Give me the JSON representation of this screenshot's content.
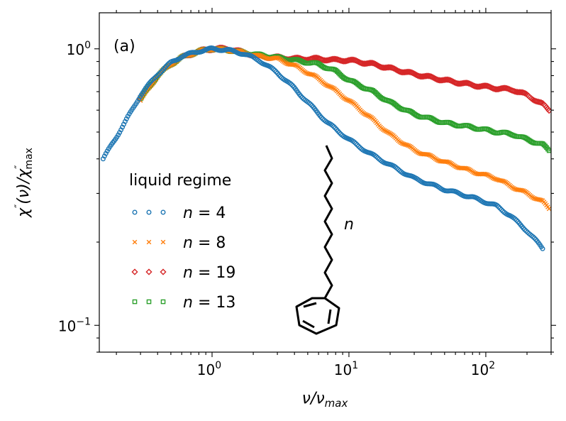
{
  "chart_data": {
    "type": "scatter",
    "panel_label": "(a)",
    "xlabel": "ν/ν",
    "xlabel_sub": "max",
    "ylabel_parts": [
      "χ",
      "″",
      "(ν)/χ",
      "″",
      "max"
    ],
    "xscale": "log",
    "yscale": "log",
    "xlim": [
      0.15,
      300
    ],
    "ylim": [
      0.08,
      1.35
    ],
    "x_ticks": [
      {
        "value": 1,
        "base": "10",
        "exp": "0"
      },
      {
        "value": 10,
        "base": "10",
        "exp": "1"
      },
      {
        "value": 100,
        "base": "10",
        "exp": "2"
      }
    ],
    "y_ticks": [
      {
        "value": 1,
        "base": "10",
        "exp": "0"
      },
      {
        "value": 0.1,
        "base": "10",
        "exp": "−1"
      }
    ],
    "legend": {
      "title": "liquid regime",
      "placement": "lower-left",
      "entries": [
        {
          "var": "n",
          "op": " = ",
          "value": "4",
          "series": 0
        },
        {
          "var": "n",
          "op": " = ",
          "value": "8",
          "series": 1
        },
        {
          "var": "n",
          "op": " = ",
          "value": "19",
          "series": 2
        },
        {
          "var": "n",
          "op": " = ",
          "value": "13",
          "series": 3
        }
      ]
    },
    "molecule_label": "n",
    "series": [
      {
        "name": "n = 4",
        "marker": "circle",
        "color": "#1f77b4",
        "x": [
          0.16,
          0.2,
          0.25,
          0.3,
          0.4,
          0.5,
          0.6,
          0.8,
          1.0,
          1.3,
          1.7,
          2.2,
          3.0,
          4.0,
          5.5,
          7.0,
          10.0,
          14.0,
          20.0,
          30.0,
          50.0,
          80.0,
          120.0,
          150.0,
          200.0,
          260.0
        ],
        "y": [
          0.4,
          0.48,
          0.58,
          0.68,
          0.81,
          0.89,
          0.94,
          0.98,
          1.0,
          0.99,
          0.96,
          0.91,
          0.82,
          0.72,
          0.61,
          0.54,
          0.47,
          0.42,
          0.38,
          0.34,
          0.31,
          0.29,
          0.27,
          0.25,
          0.22,
          0.19
        ]
      },
      {
        "name": "n = 8",
        "marker": "cross",
        "color": "#ff7f0e",
        "x": [
          0.3,
          0.4,
          0.5,
          0.6,
          0.8,
          1.0,
          1.3,
          1.7,
          2.2,
          3.0,
          4.0,
          5.5,
          7.0,
          10.0,
          14.0,
          20.0,
          30.0,
          50.0,
          80.0,
          120.0,
          150.0,
          200.0,
          260.0,
          290.0
        ],
        "y": [
          0.65,
          0.8,
          0.88,
          0.93,
          0.98,
          1.0,
          0.99,
          0.97,
          0.94,
          0.92,
          0.87,
          0.8,
          0.74,
          0.65,
          0.57,
          0.49,
          0.43,
          0.39,
          0.36,
          0.34,
          0.32,
          0.3,
          0.28,
          0.265
        ]
      },
      {
        "name": "n = 19",
        "marker": "diamond",
        "color": "#d62728",
        "x": [
          0.3,
          0.4,
          0.5,
          0.6,
          0.8,
          1.0,
          1.3,
          1.7,
          2.2,
          3.0,
          4.0,
          6.0,
          8.0,
          10.0,
          15.0,
          20.0,
          30.0,
          50.0,
          80.0,
          120.0,
          160.0,
          200.0,
          260.0,
          290.0
        ],
        "y": [
          0.66,
          0.8,
          0.88,
          0.93,
          0.98,
          1.0,
          1.0,
          0.97,
          0.94,
          0.93,
          0.92,
          0.92,
          0.91,
          0.91,
          0.88,
          0.85,
          0.81,
          0.77,
          0.74,
          0.72,
          0.71,
          0.68,
          0.63,
          0.6
        ]
      },
      {
        "name": "n = 13",
        "marker": "square",
        "color": "#2ca02c",
        "x": [
          0.3,
          0.4,
          0.5,
          0.6,
          0.8,
          1.0,
          1.3,
          1.7,
          2.2,
          3.0,
          4.0,
          6.0,
          8.0,
          10.0,
          15.0,
          20.0,
          30.0,
          50.0,
          80.0,
          120.0,
          160.0,
          200.0,
          260.0,
          290.0
        ],
        "y": [
          0.66,
          0.8,
          0.88,
          0.93,
          0.98,
          1.0,
          0.99,
          0.97,
          0.95,
          0.93,
          0.91,
          0.88,
          0.83,
          0.77,
          0.7,
          0.64,
          0.58,
          0.54,
          0.52,
          0.5,
          0.49,
          0.47,
          0.45,
          0.43
        ]
      }
    ]
  }
}
